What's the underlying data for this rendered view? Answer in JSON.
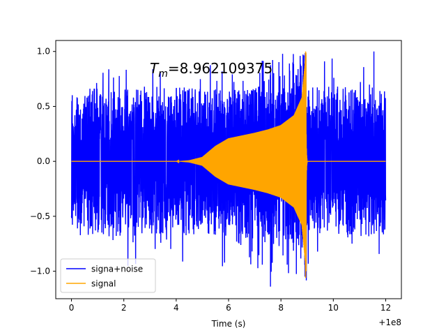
{
  "chart_data": {
    "type": "line",
    "title": "",
    "xlabel": "Time (s)",
    "ylabel": "",
    "x_offset_label": "+1e8",
    "xlim": [
      -0.6,
      12.6
    ],
    "ylim": [
      -1.25,
      1.1
    ],
    "xticks": [
      0,
      2,
      4,
      6,
      8,
      10,
      12
    ],
    "xtick_labels": [
      "0",
      "2",
      "4",
      "6",
      "8",
      "10",
      "12"
    ],
    "yticks": [
      -1.0,
      -0.5,
      0.0,
      0.5,
      1.0
    ],
    "ytick_labels": [
      "−1.0",
      "−0.5",
      "0.0",
      "0.5",
      "1.0"
    ],
    "grid": false,
    "legend_position": "lower-left",
    "annotation": {
      "text_italic": "T",
      "text_subscript": "m",
      "text_rest": "=8.962109375",
      "x": 3.05,
      "y": 0.8
    },
    "series": [
      {
        "name": "signa+noise",
        "color": "#0000ff",
        "x_start": 0.0,
        "x_end": 12.0,
        "noise_envelope": {
          "x": [
            0,
            3,
            6,
            8,
            8.96,
            12
          ],
          "upper": [
            0.85,
            0.85,
            0.9,
            1.0,
            1.0,
            0.85
          ]
        },
        "max": 1.0,
        "min": -1.14
      },
      {
        "name": "signal",
        "color": "#ffa500",
        "x_start": 0.0,
        "x_end": 12.0,
        "merger_time": 8.962109375,
        "envelope": {
          "x": [
            0.0,
            4.0,
            4.5,
            5.0,
            5.5,
            6.0,
            6.5,
            7.0,
            7.5,
            8.0,
            8.5,
            8.8,
            8.962
          ],
          "amplitude": [
            0.0,
            0.0,
            0.01,
            0.04,
            0.14,
            0.21,
            0.235,
            0.26,
            0.29,
            0.33,
            0.42,
            0.58,
            1.0
          ]
        },
        "max": 1.0,
        "min": -1.06
      }
    ]
  }
}
